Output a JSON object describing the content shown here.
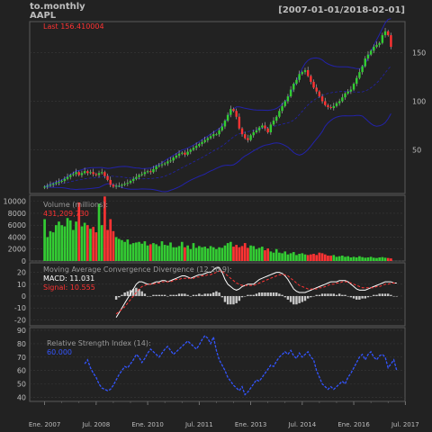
{
  "header": {
    "name": "to.monthly",
    "symbol": "AAPL",
    "date_range": "[2007-01-01/2018-02-01]"
  },
  "colors": {
    "background": "#222222",
    "grid": "#3a3a3a",
    "axis_text": "#bdbdbd",
    "up": "#33cc33",
    "down": "#ff3333",
    "bb_band": "#2222aa",
    "macd_line": "#ffffff",
    "signal_line": "#ff3333",
    "histogram": "#c8c8c8",
    "rsi_line": "#3355ff",
    "label_text": "#9a9a9a"
  },
  "chart_data": [
    {
      "type": "candlestick",
      "panel": "price",
      "last_label": "Last 156.410004",
      "overlay": "bollinger-bands",
      "ylim": [
        5,
        182
      ],
      "yticks": [
        50,
        100,
        150
      ],
      "series": {
        "close": [
          12,
          13,
          14,
          15,
          16,
          17,
          18,
          20,
          22,
          24,
          25,
          27,
          24,
          26,
          28,
          26,
          27,
          25,
          24,
          26,
          27,
          23,
          19,
          14,
          12,
          13,
          13,
          14,
          15,
          16,
          18,
          20,
          22,
          24,
          25,
          27,
          28,
          27,
          30,
          33,
          34,
          35,
          36,
          38,
          39,
          42,
          44,
          46,
          47,
          45,
          48,
          50,
          52,
          54,
          56,
          58,
          60,
          62,
          64,
          66,
          66,
          70,
          74,
          80,
          86,
          92,
          90,
          84,
          72,
          66,
          62,
          60,
          65,
          68,
          70,
          73,
          75,
          72,
          68,
          76,
          80,
          84,
          90,
          95,
          100,
          105,
          112,
          118,
          122,
          128,
          130,
          132,
          126,
          120,
          114,
          110,
          105,
          100,
          96,
          94,
          93,
          95,
          98,
          100,
          104,
          108,
          110,
          112,
          118,
          124,
          130,
          136,
          144,
          148,
          152,
          156,
          158,
          160,
          168,
          172,
          168,
          156
        ]
      }
    },
    {
      "type": "bar",
      "panel": "volume",
      "title": "Volume (millions):",
      "last_value": "431,209,730",
      "ylim": [
        0,
        11000
      ],
      "yticks": [
        0,
        2000,
        4000,
        6000,
        8000,
        10000
      ],
      "values": [
        7000,
        4000,
        5000,
        4800,
        6000,
        6600,
        6000,
        5800,
        7200,
        6800,
        5200,
        6600,
        9800,
        5800,
        6400,
        6000,
        5400,
        5700,
        4800,
        9600,
        6000,
        10800,
        5200,
        7000,
        5000,
        4000,
        3700,
        3500,
        3200,
        3600,
        2800,
        3000,
        3100,
        3200,
        2900,
        3300,
        2600,
        2800,
        3000,
        2800,
        2500,
        3300,
        2700,
        2600,
        3100,
        2300,
        2300,
        2500,
        3200,
        2300,
        2600,
        2000,
        3000,
        2200,
        2500,
        2300,
        2400,
        2100,
        2500,
        2300,
        2000,
        2300,
        2200,
        2600,
        3000,
        3200,
        2400,
        2700,
        2300,
        2500,
        3000,
        2200,
        2600,
        2500,
        2000,
        2200,
        2400,
        1800,
        2100,
        1600,
        1400,
        2000,
        1400,
        1300,
        1600,
        1100,
        1300,
        1500,
        1000,
        1200,
        1300,
        1100,
        1000,
        1100,
        1200,
        1000,
        1400,
        1300,
        1100,
        900,
        900,
        1000,
        700,
        800,
        900,
        700,
        800,
        600,
        700,
        600,
        800,
        650,
        550,
        600,
        700,
        550,
        500,
        600,
        650,
        550,
        500,
        431
      ]
    },
    {
      "type": "line",
      "panel": "macd",
      "title": "Moving Average Convergence Divergence (12,26,9):",
      "macd_label": "MACD: 11.031",
      "signal_label": "Signal: 10.555",
      "ylim": [
        -25,
        28
      ],
      "yticks": [
        -20,
        -10,
        0,
        10,
        20
      ],
      "start_index": 25,
      "macd": [
        -18,
        -14,
        -10,
        -6,
        -2,
        2,
        6,
        10,
        12,
        12,
        11,
        10,
        10,
        11,
        12,
        12,
        13,
        13,
        12,
        13,
        14,
        15,
        16,
        17,
        17,
        16,
        15,
        16,
        17,
        18,
        18,
        19,
        20,
        20,
        22,
        24,
        24,
        20,
        14,
        10,
        8,
        6,
        5,
        6,
        8,
        9,
        10,
        10,
        10,
        12,
        14,
        15,
        16,
        17,
        18,
        19,
        20,
        20,
        19,
        17,
        14,
        10,
        6,
        4,
        3,
        3,
        3,
        4,
        5,
        6,
        7,
        8,
        9,
        10,
        11,
        12,
        12,
        12,
        13,
        13,
        13,
        12,
        10,
        8,
        6,
        5,
        5,
        5,
        6,
        7,
        8,
        9,
        10,
        11,
        12,
        12,
        12,
        11,
        11
      ],
      "signal": [
        -15,
        -13,
        -11,
        -9,
        -6,
        -3,
        0,
        3,
        6,
        8,
        9,
        10,
        10,
        10,
        11,
        11,
        12,
        12,
        12,
        12,
        13,
        14,
        14,
        15,
        15,
        15,
        15,
        15,
        16,
        16,
        17,
        17,
        18,
        18,
        19,
        20,
        21,
        21,
        19,
        17,
        15,
        13,
        11,
        10,
        9,
        9,
        9,
        9,
        9,
        10,
        11,
        12,
        13,
        14,
        15,
        16,
        17,
        18,
        18,
        18,
        17,
        15,
        13,
        11,
        9,
        8,
        7,
        6,
        6,
        6,
        6,
        7,
        7,
        8,
        9,
        10,
        10,
        11,
        11,
        12,
        12,
        12,
        11,
        10,
        9,
        8,
        7,
        7,
        7,
        7,
        7,
        8,
        8,
        9,
        10,
        10,
        11,
        11,
        11
      ],
      "histogram": [
        -3,
        -1,
        1,
        3,
        4,
        5,
        6,
        7,
        6,
        4,
        2,
        0,
        0,
        1,
        1,
        1,
        1,
        1,
        0,
        1,
        1,
        1,
        2,
        2,
        2,
        1,
        0,
        1,
        1,
        2,
        1,
        2,
        2,
        2,
        3,
        4,
        3,
        -1,
        -5,
        -7,
        -7,
        -7,
        -6,
        -4,
        -1,
        0,
        1,
        1,
        1,
        2,
        3,
        3,
        3,
        3,
        3,
        3,
        3,
        2,
        1,
        -1,
        -3,
        -5,
        -7,
        -7,
        -6,
        -5,
        -4,
        -2,
        -1,
        0,
        1,
        1,
        2,
        2,
        2,
        2,
        2,
        1,
        2,
        1,
        1,
        0,
        -1,
        -2,
        -3,
        -3,
        -2,
        -2,
        -1,
        0,
        1,
        1,
        2,
        2,
        2,
        2,
        1,
        0,
        0
      ]
    },
    {
      "type": "line",
      "panel": "rsi",
      "title": "Relative Strength Index (14):",
      "last_value": "60.000",
      "ylim": [
        37,
        92
      ],
      "yticks": [
        40,
        50,
        60,
        70,
        80,
        90
      ],
      "start_index": 14,
      "values": [
        65,
        68,
        62,
        58,
        55,
        50,
        47,
        46,
        45,
        46,
        49,
        53,
        57,
        60,
        63,
        62,
        65,
        68,
        72,
        70,
        66,
        69,
        73,
        76,
        74,
        72,
        70,
        73,
        76,
        78,
        75,
        72,
        74,
        76,
        78,
        80,
        82,
        80,
        78,
        76,
        79,
        83,
        86,
        84,
        80,
        85,
        75,
        68,
        64,
        60,
        55,
        52,
        49,
        47,
        45,
        48,
        42,
        44,
        47,
        50,
        53,
        52,
        55,
        58,
        61,
        64,
        63,
        67,
        70,
        72,
        74,
        72,
        75,
        71,
        69,
        73,
        70,
        72,
        74,
        70,
        68,
        60,
        55,
        50,
        48,
        46,
        48,
        46,
        48,
        50,
        52,
        50,
        55,
        58,
        62,
        66,
        70,
        72,
        68,
        72,
        74,
        70,
        68,
        71,
        72,
        70,
        62,
        65,
        68,
        60
      ]
    },
    {
      "type": "axis",
      "panel": "x",
      "tick_labels": [
        "Ene. 2007",
        "Jul. 2008",
        "Ene. 2010",
        "Jul. 2011",
        "Ene. 2013",
        "Jul. 2014",
        "Ene. 2016",
        "Jul. 2017"
      ]
    }
  ]
}
